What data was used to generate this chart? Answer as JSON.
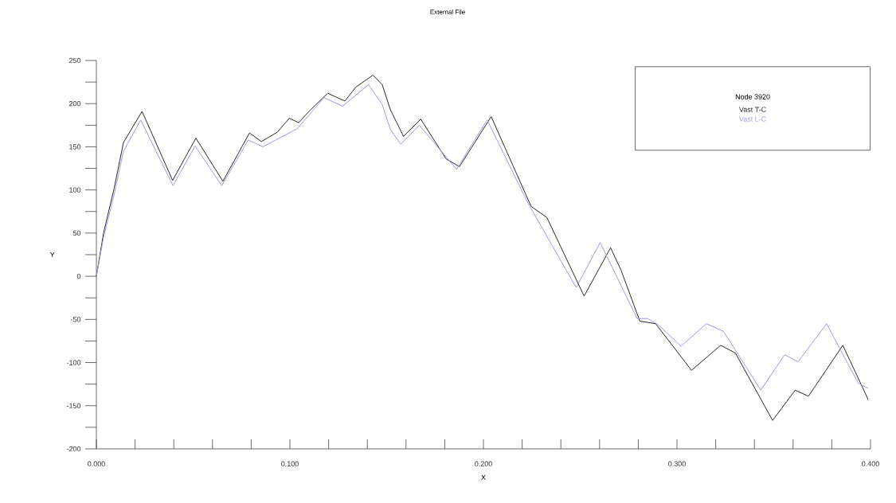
{
  "chart_data": {
    "type": "line",
    "title": "External File",
    "xlabel": "X",
    "ylabel": "Y",
    "legend_title": "Node 3920",
    "legend": "top right",
    "marker": "none",
    "line_style": "solid",
    "grid": false,
    "xlim": [
      0,
      0.4
    ],
    "ylim": [
      -200,
      250
    ],
    "xticks": [
      {
        "value": 0,
        "label": "0.000"
      },
      {
        "value": 0.1,
        "label": "0.100"
      },
      {
        "value": 0.2,
        "label": "0.200"
      },
      {
        "value": 0.3,
        "label": "0.300"
      },
      {
        "value": 0.4,
        "label": "0.400"
      }
    ],
    "yticks": [
      -200,
      -150,
      -100,
      -50,
      0,
      50,
      100,
      150,
      200,
      250
    ],
    "series": [
      {
        "name": "Vast T-C",
        "color": "#2a2a2a",
        "x": [
          0,
          0.0037,
          0.0092,
          0.014,
          0.0236,
          0.0394,
          0.0514,
          0.0654,
          0.0791,
          0.0853,
          0.0935,
          0.0997,
          0.1045,
          0.1107,
          0.1196,
          0.1284,
          0.134,
          0.1429,
          0.1477,
          0.1519,
          0.1587,
          0.1676,
          0.1807,
          0.1876,
          0.204,
          0.2246,
          0.2328,
          0.252,
          0.2657,
          0.2711,
          0.2808,
          0.289,
          0.3075,
          0.3226,
          0.3302,
          0.3494,
          0.3611,
          0.3679,
          0.3857,
          0.3988
        ],
        "values": [
          0,
          50,
          102,
          155,
          191,
          111,
          160,
          110,
          166,
          156,
          167,
          183,
          178,
          193,
          212,
          203,
          219,
          233,
          222,
          193,
          162,
          182,
          136,
          127,
          185,
          81,
          68,
          -23,
          33,
          7,
          -52,
          -55,
          -109,
          -80,
          -89,
          -167,
          -132,
          -139,
          -80,
          -143
        ]
      },
      {
        "name": "Vast L-C",
        "color": "#9c9ce8",
        "x": [
          0,
          0.0037,
          0.0092,
          0.014,
          0.0229,
          0.0396,
          0.051,
          0.0648,
          0.0785,
          0.086,
          0.1038,
          0.1176,
          0.1272,
          0.1406,
          0.1477,
          0.1519,
          0.1573,
          0.1669,
          0.1861,
          0.2019,
          0.2232,
          0.2479,
          0.2603,
          0.2794,
          0.2849,
          0.2902,
          0.3021,
          0.3152,
          0.3241,
          0.3433,
          0.3556,
          0.3626,
          0.3773,
          0.3937,
          0.3988
        ],
        "values": [
          0,
          45,
          95,
          145,
          181,
          105,
          151,
          105,
          158,
          150,
          171,
          207,
          197,
          222,
          199,
          170,
          153,
          175,
          124,
          181,
          84,
          -13,
          39,
          -49,
          -49,
          -56,
          -81,
          -55,
          -64,
          -132,
          -91,
          -99,
          -55,
          -124,
          -130
        ]
      }
    ]
  }
}
